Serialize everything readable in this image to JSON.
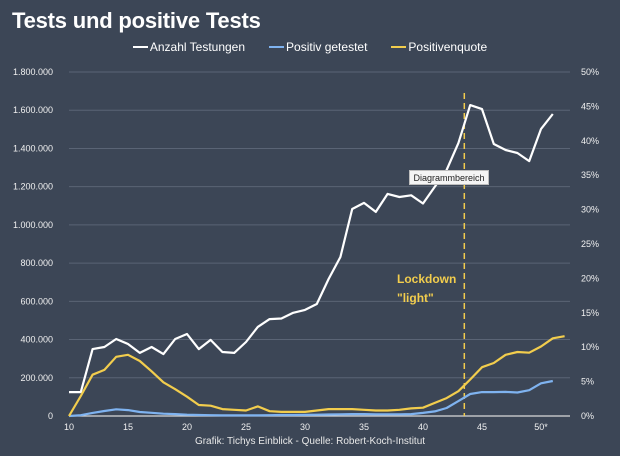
{
  "chart_data": {
    "type": "line",
    "title": "Tests und positive Tests",
    "source": "Grafik: Tichys Einblick - Quelle: Robert-Koch-Institut",
    "xlabel": "",
    "ylabel": "",
    "x": [
      10,
      11,
      12,
      13,
      14,
      15,
      16,
      17,
      18,
      19,
      20,
      21,
      22,
      23,
      24,
      25,
      26,
      27,
      28,
      29,
      30,
      31,
      32,
      33,
      34,
      35,
      36,
      37,
      38,
      39,
      40,
      41,
      42,
      43,
      44,
      45,
      46,
      47,
      48,
      49,
      50,
      51,
      52
    ],
    "x_ticks": [
      10,
      15,
      20,
      25,
      30,
      35,
      40,
      45,
      50
    ],
    "x_tick_labels": [
      "10",
      "15",
      "20",
      "25",
      "30",
      "35",
      "40",
      "45",
      "50*"
    ],
    "y_left": {
      "range": [
        0,
        1800000
      ],
      "ticks": [
        0,
        200000,
        400000,
        600000,
        800000,
        1000000,
        1200000,
        1400000,
        1600000,
        1800000
      ],
      "tick_labels": [
        "0",
        "200.000",
        "400.000",
        "600.000",
        "800.000",
        "1.000.000",
        "1.200.000",
        "1.400.000",
        "1.600.000",
        "1.800.000"
      ]
    },
    "y_right": {
      "range": [
        0,
        50
      ],
      "ticks": [
        0,
        5,
        10,
        15,
        20,
        25,
        30,
        35,
        40,
        45,
        50
      ],
      "tick_labels": [
        "0%",
        "5%",
        "10%",
        "15%",
        "20%",
        "25%",
        "30%",
        "35%",
        "40%",
        "45%",
        "50%"
      ]
    },
    "grid": true,
    "legend_position": "top-center",
    "series": [
      {
        "name": "Anzahl Testungen",
        "axis": "left",
        "color": "#ffffff",
        "values": [
          125000,
          125000,
          350000,
          361000,
          403000,
          377000,
          330000,
          361000,
          324000,
          403000,
          429000,
          350000,
          398000,
          335000,
          330000,
          387000,
          466000,
          507000,
          510000,
          540000,
          555000,
          586000,
          717000,
          832000,
          1083000,
          1115000,
          1068000,
          1162000,
          1146000,
          1155000,
          1112000,
          1200000,
          1287000,
          1428000,
          1627000,
          1606000,
          1423000,
          1392000,
          1376000,
          1334000,
          1502000,
          1580000,
          null
        ]
      },
      {
        "name": "Positiv getestet",
        "axis": "left",
        "color": "#7fb3f0",
        "values": [
          0,
          4000,
          16000,
          26000,
          35000,
          31000,
          21000,
          17000,
          12000,
          10000,
          7000,
          5000,
          4000,
          3000,
          3000,
          3000,
          3000,
          4000,
          5000,
          5000,
          6000,
          7000,
          8000,
          9000,
          10000,
          10000,
          9000,
          9000,
          9000,
          10000,
          16000,
          24000,
          42000,
          78000,
          115000,
          125000,
          125000,
          126000,
          123000,
          135000,
          171000,
          183000,
          null
        ]
      },
      {
        "name": "Positivenquote",
        "axis": "right",
        "color": "#f2cd4d",
        "values": [
          0,
          2.9,
          6.0,
          6.7,
          8.6,
          8.9,
          8.0,
          6.5,
          4.9,
          3.9,
          2.8,
          1.6,
          1.5,
          1.0,
          0.9,
          0.8,
          1.4,
          0.7,
          0.6,
          0.6,
          0.6,
          0.8,
          1.0,
          1.0,
          1.0,
          0.9,
          0.8,
          0.8,
          0.9,
          1.1,
          1.2,
          1.9,
          2.6,
          3.6,
          5.3,
          7.1,
          7.7,
          8.9,
          9.3,
          9.2,
          10.1,
          11.3,
          11.6
        ]
      }
    ],
    "annotations": [
      {
        "type": "vline",
        "x": 43.5,
        "style": "dashed",
        "color": "#f2cd4d"
      },
      {
        "type": "text",
        "lines": [
          "Lockdown",
          "\"light\""
        ],
        "x": 37,
        "color": "#f2cd4d"
      }
    ],
    "tooltip": "Diagrammbereich"
  }
}
